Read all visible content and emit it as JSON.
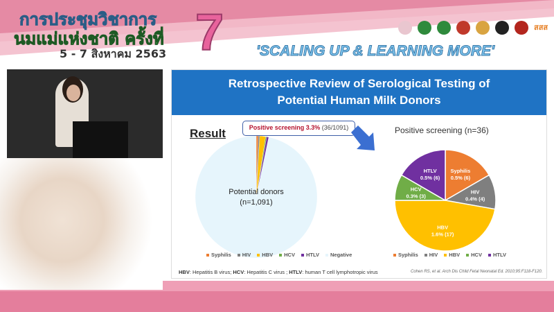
{
  "header": {
    "title_line1": "การประชุมวิชาการ",
    "title_line2": "นมแม่แห่งชาติ ครั้งที่",
    "number": "7",
    "dates": "5 - 7 สิงหาคม 2563",
    "slogan": "'SCALING UP & LEARNING MORE'",
    "logo_text": "สสส"
  },
  "slide": {
    "title_line1": "Retrospective Review of Serological Testing of",
    "title_line2": "Potential Human Milk Donors",
    "result_label": "Result",
    "callout_bold": "Positive screening 3.3%",
    "callout_rest": "(36/1091)",
    "footnote_parts": [
      "HBV",
      ": Hepatitis B virus; ",
      "HCV",
      ": Hepatitis C virus ; ",
      "HTLV",
      ": human T cell lymphotropic virus"
    ],
    "citation": "Cohen RS, et al. Arch Dis Child Fetal Neonatal Ed. 2010;95:F118-F120."
  },
  "chart_data": [
    {
      "type": "pie",
      "center_label_line1": "Potential donors",
      "center_label_line2": "(n=1,091)",
      "categories": [
        "Syphilis",
        "HIV",
        "HBV",
        "HCV",
        "HTLV",
        "Negative"
      ],
      "values": [
        6,
        4,
        17,
        3,
        6,
        1055
      ],
      "colors": [
        "#ed7d31",
        "#7f7f7f",
        "#ffc000",
        "#70ad47",
        "#7030a0",
        "#e6f5fc"
      ],
      "legend": "bottom"
    },
    {
      "type": "pie",
      "title": "Positive screening (n=36)",
      "categories": [
        "Syphilis",
        "HIV",
        "HBV",
        "HCV",
        "HTLV"
      ],
      "values": [
        6,
        4,
        17,
        3,
        6
      ],
      "labels": [
        "0.5% (6)",
        "0.4% (4)",
        "1.6% (17)",
        "0.3% (3)",
        "0.5% (6)"
      ],
      "colors": [
        "#ed7d31",
        "#7f7f7f",
        "#ffc000",
        "#70ad47",
        "#7030a0"
      ],
      "legend": "bottom"
    }
  ]
}
